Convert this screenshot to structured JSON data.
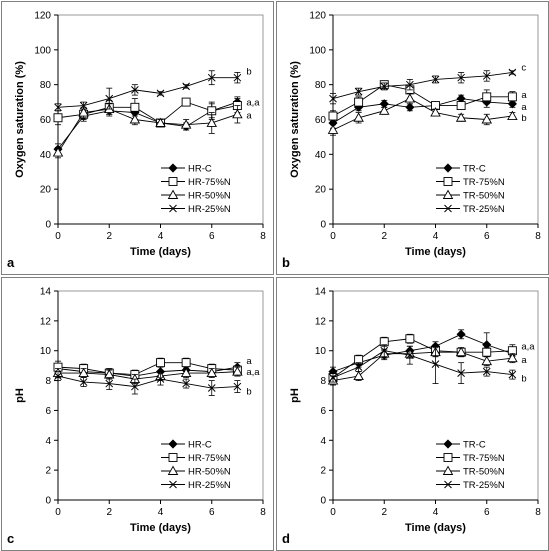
{
  "chart_data": [
    {
      "type": "line",
      "panel_label": "a",
      "xlabel": "Time (days)",
      "ylabel": "Oxygen saturation (%)",
      "xlim": [
        0,
        8
      ],
      "ylim": [
        0,
        120
      ],
      "xticks": [
        0,
        2,
        4,
        6,
        8
      ],
      "yticks": [
        0,
        20,
        40,
        60,
        80,
        100,
        120
      ],
      "legend_position": "bottom-right",
      "series": [
        {
          "name": "HR-C",
          "marker": "diamond",
          "x": [
            0,
            1,
            2,
            3,
            4,
            5,
            6,
            7
          ],
          "y": [
            43,
            62,
            65,
            64,
            58,
            56,
            65,
            70
          ],
          "err": [
            3,
            3,
            3,
            4,
            2,
            2,
            4,
            3
          ]
        },
        {
          "name": "HR-75%N",
          "marker": "square",
          "x": [
            0,
            1,
            2,
            3,
            4,
            5,
            6,
            7
          ],
          "y": [
            61,
            63,
            67,
            67,
            58,
            70,
            65,
            68
          ],
          "err": [
            4,
            3,
            4,
            5,
            2,
            2,
            5,
            4
          ]
        },
        {
          "name": "HR-50%N",
          "marker": "triangle",
          "x": [
            0,
            1,
            2,
            3,
            4,
            5,
            6,
            7
          ],
          "y": [
            41,
            64,
            66,
            60,
            58,
            57,
            58,
            63
          ],
          "err": [
            3,
            3,
            3,
            3,
            2,
            3,
            6,
            5
          ]
        },
        {
          "name": "HR-25%N",
          "marker": "x",
          "x": [
            0,
            1,
            2,
            3,
            4,
            5,
            6,
            7
          ],
          "y": [
            67,
            68,
            72,
            77,
            75,
            79,
            84,
            84
          ],
          "err": [
            2,
            2,
            6,
            3,
            1,
            1,
            4,
            3
          ]
        }
      ],
      "annotations": [
        {
          "text": "b",
          "series": "HR-25%N"
        },
        {
          "text": "a,a",
          "series": "HR-75%N"
        },
        {
          "text": "a",
          "series": "HR-50%N"
        }
      ]
    },
    {
      "type": "line",
      "panel_label": "b",
      "xlabel": "Time (days)",
      "ylabel": "Oxygen saturation (%)",
      "xlim": [
        0,
        8
      ],
      "ylim": [
        0,
        120
      ],
      "xticks": [
        0,
        2,
        4,
        6,
        8
      ],
      "yticks": [
        0,
        20,
        40,
        60,
        80,
        100,
        120
      ],
      "legend_position": "bottom-right",
      "series": [
        {
          "name": "TR-C",
          "marker": "diamond",
          "x": [
            0,
            1,
            2,
            3,
            4,
            5,
            6,
            7
          ],
          "y": [
            58,
            67,
            69,
            67,
            68,
            72,
            70,
            69
          ],
          "err": [
            3,
            2,
            2,
            2,
            2,
            2,
            3,
            2
          ]
        },
        {
          "name": "TR-75%N",
          "marker": "square",
          "x": [
            0,
            1,
            2,
            3,
            4,
            5,
            6,
            7
          ],
          "y": [
            62,
            70,
            80,
            77,
            68,
            68,
            73,
            73
          ],
          "err": [
            3,
            3,
            2,
            2,
            2,
            2,
            4,
            3
          ]
        },
        {
          "name": "TR-50%N",
          "marker": "triangle",
          "x": [
            0,
            1,
            2,
            3,
            4,
            5,
            6,
            7
          ],
          "y": [
            54,
            61,
            65,
            72,
            64,
            61,
            60,
            62
          ],
          "err": [
            3,
            3,
            2,
            3,
            2,
            2,
            3,
            2
          ]
        },
        {
          "name": "TR-25%N",
          "marker": "x",
          "x": [
            0,
            1,
            2,
            3,
            4,
            5,
            6,
            7
          ],
          "y": [
            72,
            76,
            79,
            80,
            83,
            84,
            85,
            87
          ],
          "err": [
            3,
            2,
            2,
            3,
            2,
            3,
            3,
            1
          ]
        }
      ],
      "annotations": [
        {
          "text": "c",
          "series": "TR-25%N"
        },
        {
          "text": "a",
          "series": "TR-75%N"
        },
        {
          "text": "a",
          "series": "TR-C"
        },
        {
          "text": "b",
          "series": "TR-50%N"
        }
      ]
    },
    {
      "type": "line",
      "panel_label": "c",
      "xlabel": "Time (days)",
      "ylabel": "pH",
      "xlim": [
        0,
        8
      ],
      "ylim": [
        0,
        14
      ],
      "xticks": [
        0,
        2,
        4,
        6,
        8
      ],
      "yticks": [
        0,
        2,
        4,
        6,
        8,
        10,
        12,
        14
      ],
      "legend_position": "bottom-right",
      "series": [
        {
          "name": "HR-C",
          "marker": "diamond",
          "x": [
            0,
            1,
            2,
            3,
            4,
            5,
            6,
            7
          ],
          "y": [
            8.8,
            8.6,
            8.5,
            8.3,
            8.6,
            8.7,
            8.6,
            8.9
          ],
          "err": [
            0.3,
            0.3,
            0.3,
            0.3,
            0.3,
            0.3,
            0.3,
            0.3
          ]
        },
        {
          "name": "HR-75%N",
          "marker": "square",
          "x": [
            0,
            1,
            2,
            3,
            4,
            5,
            6,
            7
          ],
          "y": [
            8.9,
            8.8,
            8.5,
            8.4,
            9.2,
            9.2,
            8.8,
            8.7
          ],
          "err": [
            0.4,
            0.3,
            0.3,
            0.3,
            0.3,
            0.3,
            0.3,
            0.3
          ]
        },
        {
          "name": "HR-50%N",
          "marker": "triangle",
          "x": [
            0,
            1,
            2,
            3,
            4,
            5,
            6,
            7
          ],
          "y": [
            8.5,
            8.5,
            8.4,
            8.1,
            8.3,
            8.5,
            8.5,
            8.6
          ],
          "err": [
            0.3,
            0.3,
            0.3,
            0.3,
            0.3,
            0.3,
            0.3,
            0.3
          ]
        },
        {
          "name": "HR-25%N",
          "marker": "x",
          "x": [
            0,
            1,
            2,
            3,
            4,
            5,
            6,
            7
          ],
          "y": [
            8.3,
            7.9,
            7.8,
            7.6,
            8.1,
            7.8,
            7.5,
            7.6
          ],
          "err": [
            0.3,
            0.3,
            0.4,
            0.5,
            0.4,
            0.3,
            0.5,
            0.4
          ]
        }
      ],
      "annotations": [
        {
          "text": "a",
          "series": "HR-C"
        },
        {
          "text": "a,a",
          "series": "HR-75%N"
        },
        {
          "text": "b",
          "series": "HR-25%N"
        }
      ]
    },
    {
      "type": "line",
      "panel_label": "d",
      "xlabel": "Time (days)",
      "ylabel": "pH",
      "xlim": [
        0,
        8
      ],
      "ylim": [
        0,
        14
      ],
      "xticks": [
        0,
        2,
        4,
        6,
        8
      ],
      "yticks": [
        0,
        2,
        4,
        6,
        8,
        10,
        12,
        14
      ],
      "legend_position": "bottom-right",
      "series": [
        {
          "name": "TR-C",
          "marker": "diamond",
          "x": [
            0,
            1,
            2,
            3,
            4,
            5,
            6,
            7
          ],
          "y": [
            8.6,
            9.2,
            9.7,
            10.0,
            10.3,
            11.1,
            10.4,
            9.8
          ],
          "err": [
            0.3,
            0.3,
            0.3,
            0.3,
            0.3,
            0.3,
            0.8,
            0.4
          ]
        },
        {
          "name": "TR-75%N",
          "marker": "square",
          "x": [
            0,
            1,
            2,
            3,
            4,
            5,
            6,
            7
          ],
          "y": [
            8.2,
            9.4,
            10.6,
            10.8,
            10.0,
            9.9,
            9.9,
            10.0
          ],
          "err": [
            0.3,
            0.3,
            0.3,
            0.3,
            0.4,
            0.3,
            0.3,
            0.4
          ]
        },
        {
          "name": "TR-50%N",
          "marker": "triangle",
          "x": [
            0,
            1,
            2,
            3,
            4,
            5,
            6,
            7
          ],
          "y": [
            8.0,
            8.3,
            9.8,
            9.8,
            9.9,
            9.9,
            9.3,
            9.5
          ],
          "err": [
            0.3,
            0.3,
            0.3,
            0.3,
            0.3,
            0.3,
            0.3,
            0.3
          ]
        },
        {
          "name": "TR-25%N",
          "marker": "x",
          "x": [
            0,
            1,
            2,
            3,
            4,
            5,
            6,
            7
          ],
          "y": [
            8.2,
            8.9,
            10.0,
            9.7,
            9.1,
            8.5,
            8.6,
            8.4
          ],
          "err": [
            0.3,
            0.3,
            0.4,
            0.6,
            1.3,
            0.7,
            0.3,
            0.3
          ]
        }
      ],
      "annotations": [
        {
          "text": "a,a",
          "series": "TR-75%N"
        },
        {
          "text": "a",
          "series": "TR-50%N"
        },
        {
          "text": "b",
          "series": "TR-25%N"
        }
      ]
    }
  ]
}
